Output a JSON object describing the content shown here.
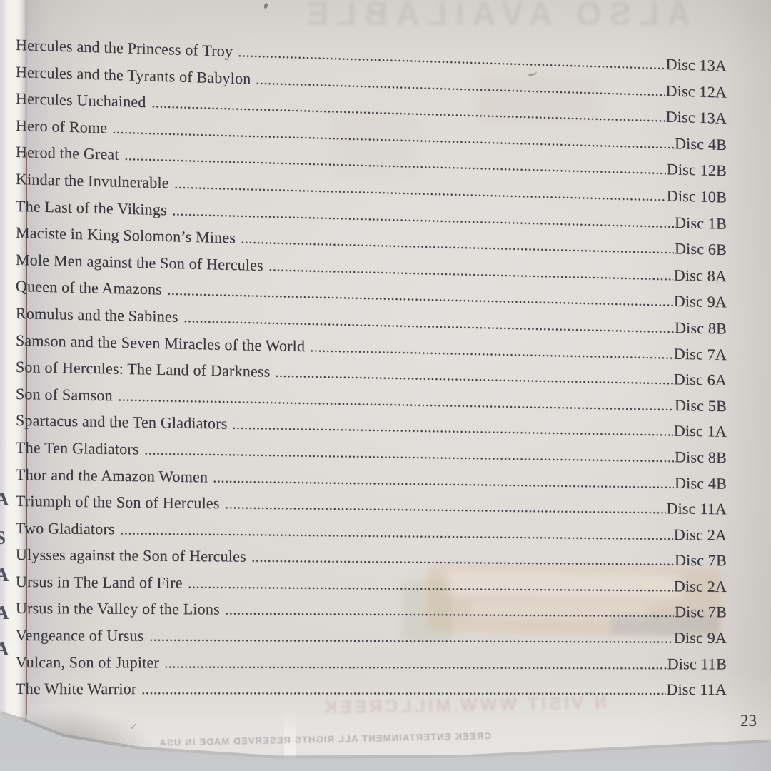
{
  "booklet_page": {
    "page_number": "23",
    "entries": [
      {
        "title": "Hercules and the Princess of Troy",
        "disc": "Disc 13A"
      },
      {
        "title": "Hercules and the Tyrants of Babylon",
        "disc": "Disc 12A"
      },
      {
        "title": "Hercules Unchained",
        "disc": "Disc 13A"
      },
      {
        "title": "Hero of Rome",
        "disc": "Disc 4B"
      },
      {
        "title": "Herod the Great",
        "disc": "Disc 12B"
      },
      {
        "title": "Kindar the Invulnerable",
        "disc": "Disc 10B"
      },
      {
        "title": "The Last of the Vikings",
        "disc": "Disc 1B"
      },
      {
        "title": "Maciste in King Solomon’s Mines",
        "disc": "Disc 6B"
      },
      {
        "title": "Mole Men against the Son of Hercules",
        "disc": "Disc 8A"
      },
      {
        "title": "Queen of the Amazons",
        "disc": "Disc 9A"
      },
      {
        "title": "Romulus and the Sabines",
        "disc": "Disc 8B"
      },
      {
        "title": "Samson and the Seven Miracles of the World",
        "disc": "Disc 7A"
      },
      {
        "title": "Son of Hercules: The Land of Darkness",
        "disc": "Disc 6A"
      },
      {
        "title": "Son of Samson",
        "disc": "Disc 5B"
      },
      {
        "title": "Spartacus and the Ten Gladiators",
        "disc": "Disc 1A"
      },
      {
        "title": "The Ten Gladiators",
        "disc": "Disc 8B"
      },
      {
        "title": "Thor and the Amazon Women",
        "disc": "Disc 4B"
      },
      {
        "title": "Triumph of the Son of Hercules",
        "disc": "Disc 11A"
      },
      {
        "title": "Two Gladiators",
        "disc": "Disc 2A"
      },
      {
        "title": "Ulysses against the Son of Hercules",
        "disc": "Disc 7B"
      },
      {
        "title": "Ursus in The Land of Fire",
        "disc": "Disc 2A"
      },
      {
        "title": "Ursus in the Valley of the Lions",
        "disc": "Disc 7B"
      },
      {
        "title": "Vengeance of Ursus",
        "disc": "Disc 9A"
      },
      {
        "title": "Vulcan, Son of Jupiter",
        "disc": "Disc 11B"
      },
      {
        "title": "The White Warrior",
        "disc": "Disc 11A"
      }
    ]
  },
  "bleedthrough": {
    "top_title_mirrored": "ALSO AVAILABLE",
    "bottom_line_mirrored": "N VISIT WWW.MILLCREEK",
    "copyright_line_mirrored": "CREEK ENTERTAINMENT ALL RIGHTS RESERVED MADE IN USA",
    "edge_letter_fragments": [
      "›",
      "A",
      "S",
      "A",
      "A",
      "A"
    ],
    "check_mark": "✓"
  },
  "colors": {
    "paper": "#d8d5d0",
    "ink": "#3a3840",
    "table_surface": "#c2c3c6",
    "page_edge_white": "#f3f1ec",
    "crease_maroon": "#6b4a44",
    "bleed_orange": "#cf9153",
    "bleed_blue": "#6f87a6",
    "bleed_pink": "#c2948e"
  }
}
